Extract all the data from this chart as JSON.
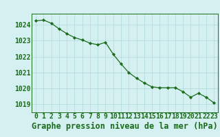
{
  "x": [
    0,
    1,
    2,
    3,
    4,
    5,
    6,
    7,
    8,
    9,
    10,
    11,
    12,
    13,
    14,
    15,
    16,
    17,
    18,
    19,
    20,
    21,
    22,
    23
  ],
  "y": [
    1024.25,
    1024.3,
    1024.1,
    1023.75,
    1023.45,
    1023.2,
    1023.05,
    1022.85,
    1022.75,
    1022.9,
    1022.15,
    1021.55,
    1021.0,
    1020.65,
    1020.35,
    1020.1,
    1020.05,
    1020.05,
    1020.05,
    1019.8,
    1019.45,
    1019.7,
    1019.45,
    1019.1
  ],
  "line_color": "#1a6b1a",
  "marker_color": "#1a6b1a",
  "bg_color": "#d4f0f0",
  "grid_color": "#b0d8d8",
  "axis_color": "#1a6b1a",
  "title": "Graphe pression niveau de la mer (hPa)",
  "ylim": [
    1018.5,
    1024.7
  ],
  "yticks": [
    1019,
    1020,
    1021,
    1022,
    1023,
    1024
  ],
  "xticks": [
    0,
    1,
    2,
    3,
    4,
    5,
    6,
    7,
    8,
    9,
    10,
    11,
    12,
    13,
    14,
    15,
    16,
    17,
    18,
    19,
    20,
    21,
    22,
    23
  ],
  "title_fontsize": 8.5,
  "tick_fontsize": 7.0
}
